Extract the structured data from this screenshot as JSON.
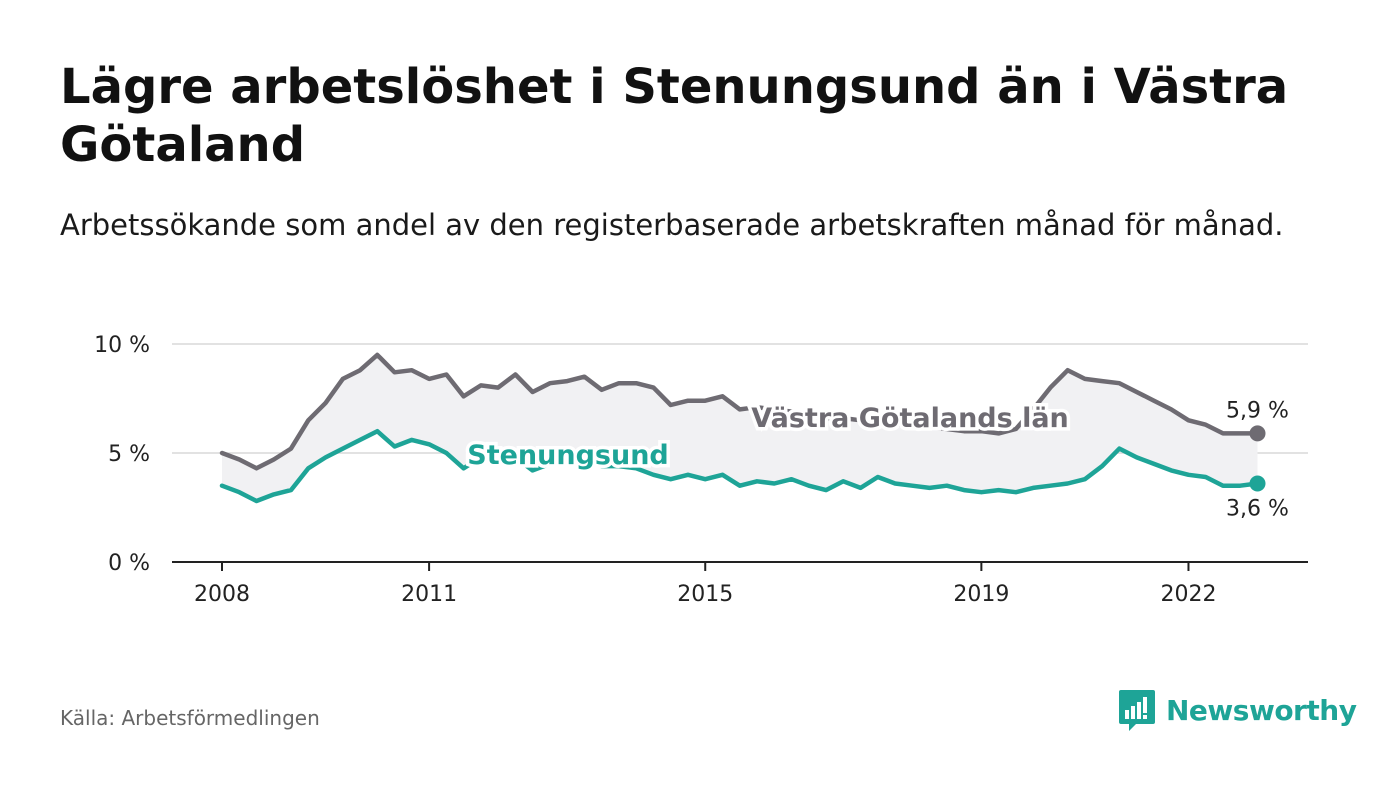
{
  "title": "Lägre arbetslöshet i Stenungsund än i Västra Götaland",
  "subtitle": "Arbetssökande som andel av den registerbaserade arbetskraften månad för månad.",
  "source": "Källa: Arbetsförmedlingen",
  "brand": "Newsworthy",
  "colors": {
    "region": "#6e6b72",
    "local": "#1ea497",
    "band": "#f1f1f3",
    "grid": "#d9d9d9"
  },
  "chart_data": {
    "type": "line",
    "x_unit": "year",
    "xlim": [
      2008,
      2023
    ],
    "ylim": [
      0,
      10
    ],
    "y_ticks": [
      0,
      5,
      10
    ],
    "y_tick_labels": [
      "0 %",
      "5 %",
      "10 %"
    ],
    "x_ticks": [
      2008,
      2011,
      2015,
      2019,
      2022
    ],
    "x_tick_labels": [
      "2008",
      "2011",
      "2015",
      "2019",
      "2022"
    ],
    "x": [
      2008.0,
      2008.25,
      2008.5,
      2008.75,
      2009.0,
      2009.25,
      2009.5,
      2009.75,
      2010.0,
      2010.25,
      2010.5,
      2010.75,
      2011.0,
      2011.25,
      2011.5,
      2011.75,
      2012.0,
      2012.25,
      2012.5,
      2012.75,
      2013.0,
      2013.25,
      2013.5,
      2013.75,
      2014.0,
      2014.25,
      2014.5,
      2014.75,
      2015.0,
      2015.25,
      2015.5,
      2015.75,
      2016.0,
      2016.25,
      2016.5,
      2016.75,
      2017.0,
      2017.25,
      2017.5,
      2017.75,
      2018.0,
      2018.25,
      2018.5,
      2018.75,
      2019.0,
      2019.25,
      2019.5,
      2019.75,
      2020.0,
      2020.25,
      2020.5,
      2020.75,
      2021.0,
      2021.25,
      2021.5,
      2021.75,
      2022.0,
      2022.25,
      2022.5,
      2022.75,
      2023.0
    ],
    "series": [
      {
        "name": "Västra Götalands län",
        "end_label": "5,9 %",
        "values": [
          5.0,
          4.7,
          4.3,
          4.7,
          5.2,
          6.5,
          7.3,
          8.4,
          8.8,
          9.5,
          8.7,
          8.8,
          8.4,
          8.6,
          7.6,
          8.1,
          8.0,
          8.6,
          7.8,
          8.2,
          8.3,
          8.5,
          7.9,
          8.2,
          8.2,
          8.0,
          7.2,
          7.4,
          7.4,
          7.6,
          7.0,
          7.1,
          7.0,
          6.9,
          6.8,
          6.6,
          6.6,
          6.5,
          6.4,
          6.3,
          6.3,
          6.2,
          6.1,
          6.0,
          6.0,
          5.9,
          6.1,
          7.0,
          8.0,
          8.8,
          8.4,
          8.3,
          8.2,
          7.8,
          7.4,
          7.0,
          6.5,
          6.3,
          5.9,
          5.9,
          5.9
        ]
      },
      {
        "name": "Stenungsund",
        "end_label": "3,6 %",
        "values": [
          3.5,
          3.2,
          2.8,
          3.1,
          3.3,
          4.3,
          4.8,
          5.2,
          5.6,
          6.0,
          5.3,
          5.6,
          5.4,
          5.0,
          4.3,
          4.8,
          4.6,
          4.8,
          4.2,
          4.5,
          4.6,
          4.8,
          4.4,
          4.4,
          4.3,
          4.0,
          3.8,
          4.0,
          3.8,
          4.0,
          3.5,
          3.7,
          3.6,
          3.8,
          3.5,
          3.3,
          3.7,
          3.4,
          3.9,
          3.6,
          3.5,
          3.4,
          3.5,
          3.3,
          3.2,
          3.3,
          3.2,
          3.4,
          3.5,
          3.6,
          3.8,
          4.4,
          5.2,
          4.8,
          4.5,
          4.2,
          4.0,
          3.9,
          3.5,
          3.5,
          3.6
        ]
      }
    ]
  }
}
